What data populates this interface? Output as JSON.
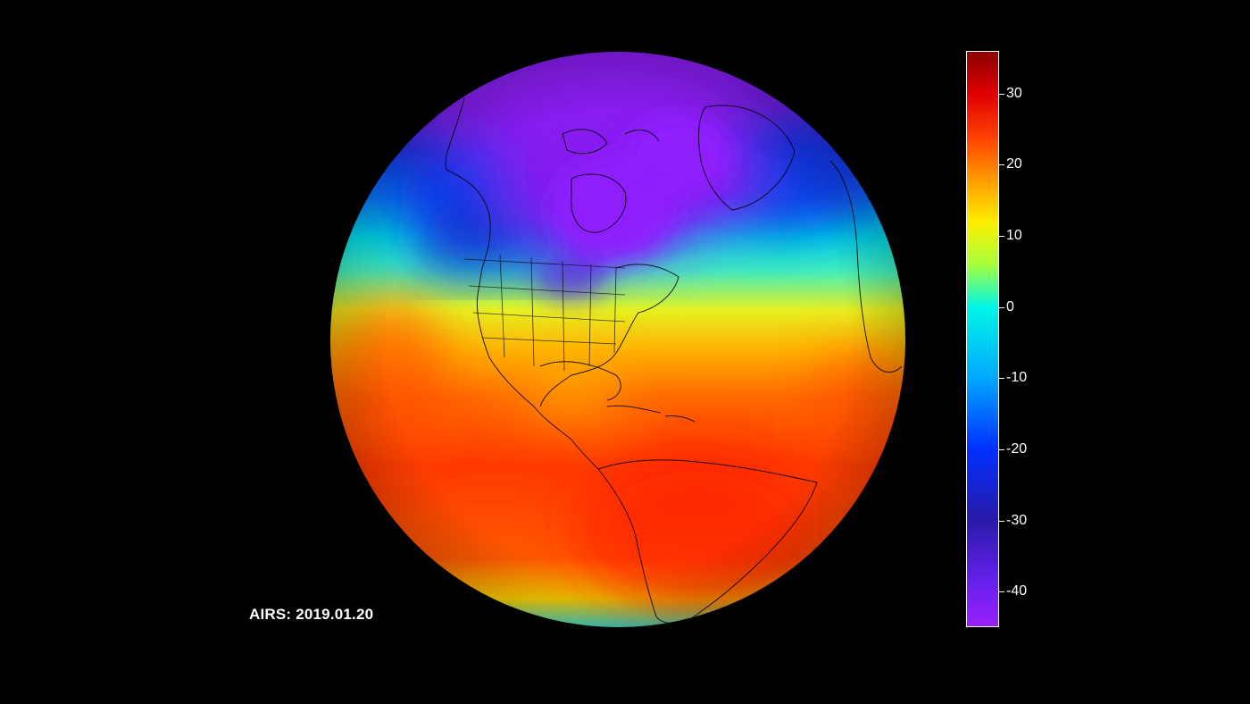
{
  "caption": "AIRS: 2019.01.20",
  "colorbar": {
    "min": -45,
    "max": 36,
    "ticks": [
      {
        "value": 30,
        "label": "30"
      },
      {
        "value": 20,
        "label": "20"
      },
      {
        "value": 10,
        "label": "10"
      },
      {
        "value": 0,
        "label": "0"
      },
      {
        "value": -10,
        "label": "-10"
      },
      {
        "value": -20,
        "label": "-20"
      },
      {
        "value": -30,
        "label": "-30"
      },
      {
        "value": -40,
        "label": "-40"
      }
    ],
    "stops": [
      {
        "value": 36,
        "color": "#8b0000"
      },
      {
        "value": 30,
        "color": "#e00000"
      },
      {
        "value": 24,
        "color": "#ff4000"
      },
      {
        "value": 18,
        "color": "#ff9a00"
      },
      {
        "value": 12,
        "color": "#ffee00"
      },
      {
        "value": 6,
        "color": "#a6ff3c"
      },
      {
        "value": 0,
        "color": "#00f5e6"
      },
      {
        "value": -10,
        "color": "#00a8ff"
      },
      {
        "value": -20,
        "color": "#0030ff"
      },
      {
        "value": -30,
        "color": "#2a1aa8"
      },
      {
        "value": -38,
        "color": "#6020e8"
      },
      {
        "value": -45,
        "color": "#9a20ff"
      }
    ]
  },
  "background_color": "#000000",
  "coastline_color": "#000000"
}
